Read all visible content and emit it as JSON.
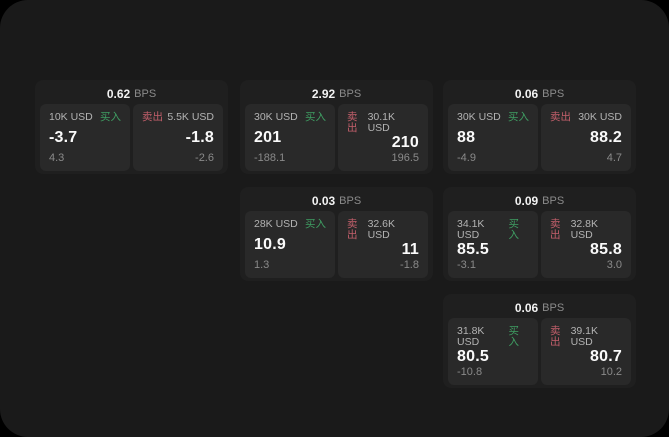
{
  "labels": {
    "bps_unit": "BPS",
    "buy": "买入",
    "sell": "卖出"
  },
  "colors": {
    "background": "#000000",
    "panel_background": "#1a1a1a",
    "card_background": "#1f1f1f",
    "tile_background": "#292929",
    "buy_green": "#3f9e63",
    "sell_red": "#c35f6b",
    "value_white": "#fafafa",
    "muted_gray": "#8a8a8a"
  },
  "cards": [
    {
      "bps": "0.62",
      "buy": {
        "size": "10K USD",
        "value": "-3.7",
        "sub": "4.3"
      },
      "sell": {
        "size": "5.5K USD",
        "value": "-1.8",
        "sub": "-2.6"
      }
    },
    {
      "bps": "2.92",
      "buy": {
        "size": "30K USD",
        "value": "201",
        "sub": "-188.1"
      },
      "sell": {
        "size": "30.1K USD",
        "value": "210",
        "sub": "196.5"
      }
    },
    {
      "bps": "0.06",
      "buy": {
        "size": "30K USD",
        "value": "88",
        "sub": "-4.9"
      },
      "sell": {
        "size": "30K USD",
        "value": "88.2",
        "sub": "4.7"
      }
    },
    {
      "bps": "0.03",
      "buy": {
        "size": "28K USD",
        "value": "10.9",
        "sub": "1.3"
      },
      "sell": {
        "size": "32.6K USD",
        "value": "11",
        "sub": "-1.8"
      }
    },
    {
      "bps": "0.09",
      "buy": {
        "size": "34.1K USD",
        "value": "85.5",
        "sub": "-3.1"
      },
      "sell": {
        "size": "32.8K USD",
        "value": "85.8",
        "sub": "3.0"
      }
    },
    {
      "bps": "0.06",
      "buy": {
        "size": "31.8K USD",
        "value": "80.5",
        "sub": "-10.8"
      },
      "sell": {
        "size": "39.1K USD",
        "value": "80.7",
        "sub": "10.2"
      }
    }
  ]
}
